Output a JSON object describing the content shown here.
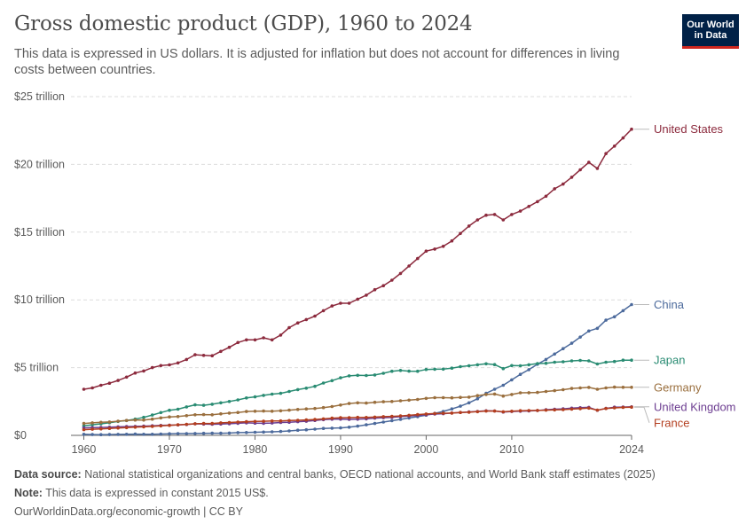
{
  "header": {
    "title": "Gross domestic product (GDP), 1960 to 2024",
    "subtitle": "This data is expressed in US dollars. It is adjusted for inflation but does not account for differences in living costs between countries.",
    "logo_line1": "Our World",
    "logo_line2": "in Data"
  },
  "footer": {
    "source_label": "Data source:",
    "source_text": "National statistical organizations and central banks, OECD national accounts, and World Bank staff estimates (2025)",
    "note_label": "Note:",
    "note_text": "This data is expressed in constant 2015 US$.",
    "url": "OurWorldinData.org/economic-growth",
    "license": "| CC BY"
  },
  "colors": {
    "grid": "#dddddd",
    "axis": "#666666",
    "text": "#5b5b5b"
  },
  "chart_data": {
    "type": "line",
    "title": "Gross domestic product (GDP), 1960 to 2024",
    "unit": "trillion US$ (constant 2015)",
    "x": [
      1960,
      1961,
      1962,
      1963,
      1964,
      1965,
      1966,
      1967,
      1968,
      1969,
      1970,
      1971,
      1972,
      1973,
      1974,
      1975,
      1976,
      1977,
      1978,
      1979,
      1980,
      1981,
      1982,
      1983,
      1984,
      1985,
      1986,
      1987,
      1988,
      1989,
      1990,
      1991,
      1992,
      1993,
      1994,
      1995,
      1996,
      1997,
      1998,
      1999,
      2000,
      2001,
      2002,
      2003,
      2004,
      2005,
      2006,
      2007,
      2008,
      2009,
      2010,
      2011,
      2012,
      2013,
      2014,
      2015,
      2016,
      2017,
      2018,
      2019,
      2020,
      2021,
      2022,
      2023,
      2024
    ],
    "xlim": [
      1958.5,
      2024
    ],
    "ylim": [
      0,
      25
    ],
    "xticks": [
      1960,
      1970,
      1980,
      1990,
      2000,
      2010,
      2024
    ],
    "xtick_labels": [
      "1960",
      "1970",
      "1980",
      "1990",
      "2000",
      "2010",
      "2024"
    ],
    "yticks": [
      0,
      5,
      10,
      15,
      20,
      25
    ],
    "ytick_labels": [
      "$0",
      "$5 trillion",
      "$10 trillion",
      "$15 trillion",
      "$20 trillion",
      "$25 trillion"
    ],
    "grid": true,
    "series": [
      {
        "name": "United States",
        "color": "#8c2a3d",
        "values": [
          3.4,
          3.5,
          3.7,
          3.85,
          4.05,
          4.3,
          4.6,
          4.75,
          5.0,
          5.15,
          5.2,
          5.35,
          5.6,
          5.95,
          5.9,
          5.88,
          6.2,
          6.5,
          6.85,
          7.05,
          7.05,
          7.2,
          7.05,
          7.4,
          7.95,
          8.3,
          8.55,
          8.8,
          9.2,
          9.55,
          9.75,
          9.75,
          10.05,
          10.35,
          10.75,
          11.05,
          11.45,
          11.95,
          12.5,
          13.05,
          13.6,
          13.75,
          13.95,
          14.35,
          14.9,
          15.45,
          15.9,
          16.25,
          16.3,
          15.9,
          16.3,
          16.55,
          16.9,
          17.25,
          17.65,
          18.2,
          18.55,
          19.05,
          19.6,
          20.15,
          19.7,
          20.8,
          21.35,
          21.95,
          22.6
        ]
      },
      {
        "name": "China",
        "color": "#4c6a9c",
        "values": [
          0.08,
          0.06,
          0.05,
          0.06,
          0.07,
          0.08,
          0.09,
          0.08,
          0.08,
          0.1,
          0.12,
          0.13,
          0.13,
          0.14,
          0.15,
          0.16,
          0.16,
          0.17,
          0.2,
          0.21,
          0.23,
          0.24,
          0.26,
          0.29,
          0.33,
          0.38,
          0.41,
          0.46,
          0.51,
          0.53,
          0.55,
          0.6,
          0.68,
          0.78,
          0.88,
          0.98,
          1.08,
          1.18,
          1.28,
          1.38,
          1.49,
          1.62,
          1.77,
          1.95,
          2.15,
          2.4,
          2.7,
          3.1,
          3.4,
          3.7,
          4.1,
          4.5,
          4.85,
          5.25,
          5.6,
          6.0,
          6.4,
          6.8,
          7.25,
          7.7,
          7.9,
          8.5,
          8.75,
          9.2,
          9.65
        ]
      },
      {
        "name": "Japan",
        "color": "#2a8c73",
        "values": [
          0.7,
          0.78,
          0.85,
          0.93,
          1.03,
          1.09,
          1.2,
          1.33,
          1.5,
          1.68,
          1.85,
          1.93,
          2.1,
          2.25,
          2.22,
          2.3,
          2.4,
          2.5,
          2.62,
          2.76,
          2.84,
          2.95,
          3.04,
          3.1,
          3.24,
          3.38,
          3.48,
          3.62,
          3.86,
          4.04,
          4.25,
          4.39,
          4.43,
          4.42,
          4.46,
          4.58,
          4.73,
          4.79,
          4.74,
          4.73,
          4.86,
          4.88,
          4.89,
          4.96,
          5.07,
          5.14,
          5.21,
          5.28,
          5.22,
          4.93,
          5.15,
          5.14,
          5.21,
          5.3,
          5.32,
          5.4,
          5.43,
          5.5,
          5.53,
          5.5,
          5.27,
          5.4,
          5.45,
          5.55,
          5.55
        ]
      },
      {
        "name": "Germany",
        "color": "#9a6f3e",
        "values": [
          0.88,
          0.92,
          0.96,
          0.99,
          1.05,
          1.1,
          1.13,
          1.13,
          1.2,
          1.29,
          1.36,
          1.39,
          1.45,
          1.52,
          1.53,
          1.52,
          1.59,
          1.64,
          1.69,
          1.76,
          1.78,
          1.79,
          1.78,
          1.81,
          1.86,
          1.91,
          1.95,
          1.98,
          2.05,
          2.13,
          2.24,
          2.35,
          2.4,
          2.38,
          2.44,
          2.48,
          2.5,
          2.55,
          2.6,
          2.65,
          2.73,
          2.78,
          2.78,
          2.77,
          2.8,
          2.82,
          2.93,
          3.02,
          3.05,
          2.9,
          3.02,
          3.14,
          3.15,
          3.17,
          3.24,
          3.3,
          3.37,
          3.46,
          3.5,
          3.54,
          3.4,
          3.5,
          3.56,
          3.55,
          3.55
        ]
      },
      {
        "name": "United Kingdom",
        "color": "#6d3e91",
        "values": [
          0.55,
          0.57,
          0.58,
          0.6,
          0.63,
          0.65,
          0.66,
          0.68,
          0.71,
          0.73,
          0.75,
          0.77,
          0.8,
          0.85,
          0.83,
          0.82,
          0.84,
          0.86,
          0.89,
          0.92,
          0.9,
          0.89,
          0.91,
          0.95,
          0.97,
          1.01,
          1.04,
          1.1,
          1.16,
          1.19,
          1.2,
          1.18,
          1.19,
          1.22,
          1.27,
          1.3,
          1.33,
          1.38,
          1.42,
          1.47,
          1.52,
          1.57,
          1.6,
          1.65,
          1.69,
          1.73,
          1.77,
          1.81,
          1.8,
          1.72,
          1.76,
          1.78,
          1.8,
          1.83,
          1.89,
          1.93,
          1.96,
          2.01,
          2.04,
          2.07,
          1.85,
          1.99,
          2.08,
          2.09,
          2.11
        ]
      },
      {
        "name": "France",
        "color": "#b33e1f",
        "values": [
          0.42,
          0.45,
          0.48,
          0.51,
          0.54,
          0.57,
          0.6,
          0.63,
          0.66,
          0.7,
          0.74,
          0.78,
          0.81,
          0.86,
          0.88,
          0.88,
          0.92,
          0.95,
          0.98,
          1.01,
          1.03,
          1.04,
          1.06,
          1.07,
          1.09,
          1.11,
          1.14,
          1.17,
          1.22,
          1.27,
          1.3,
          1.31,
          1.33,
          1.32,
          1.35,
          1.38,
          1.4,
          1.43,
          1.48,
          1.53,
          1.58,
          1.61,
          1.63,
          1.64,
          1.69,
          1.71,
          1.75,
          1.79,
          1.79,
          1.74,
          1.78,
          1.82,
          1.83,
          1.84,
          1.86,
          1.88,
          1.9,
          1.94,
          1.97,
          2.01,
          1.86,
          1.98,
          2.03,
          2.06,
          2.08
        ]
      }
    ]
  }
}
